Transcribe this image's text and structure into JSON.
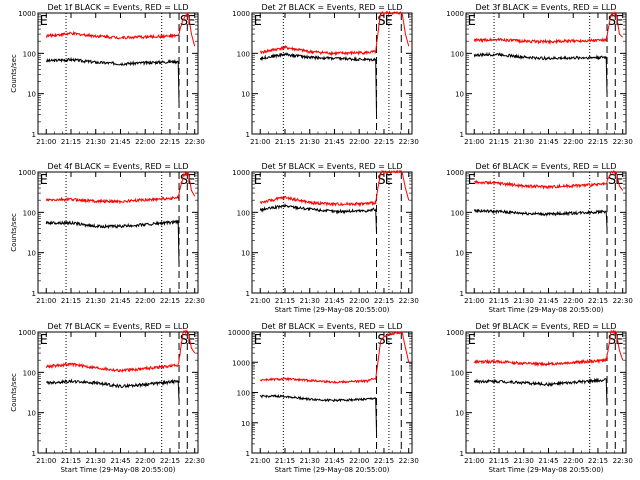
{
  "colors": {
    "events": "#000000",
    "lld": "#ff0000",
    "axis": "#000000",
    "background": "#ffffff"
  },
  "chart_data": [
    {
      "type": "line",
      "title": "Det 1f BLACK = Events, RED = LLD",
      "ylabel": "Counts/sec",
      "xlabel": "",
      "yscale": "log",
      "ylim": [
        1,
        1000
      ],
      "ytick_labels": [
        "1",
        "10",
        "100",
        "1000"
      ],
      "xtick_labels": [
        "21:00",
        "21:15",
        "21:30",
        "21:45",
        "22:00",
        "22:15",
        "22:30"
      ],
      "xlim_min": [
        0,
        97
      ],
      "annotations": [
        "E",
        "S",
        "E"
      ],
      "series": [
        {
          "name": "Events",
          "x": [
            5,
            20,
            35,
            50,
            85,
            85.5
          ],
          "y": [
            65,
            70,
            60,
            55,
            63,
            6
          ]
        },
        {
          "name": "LLD",
          "x": [
            5,
            20,
            35,
            50,
            85,
            88,
            91,
            93,
            95
          ],
          "y": [
            270,
            310,
            270,
            245,
            270,
            700,
            1000,
            300,
            150
          ]
        }
      ],
      "vlines_dotted": [
        17,
        75
      ],
      "vlines_dashed": [
        85.5,
        90.5
      ]
    },
    {
      "type": "line",
      "title": "Det 2f BLACK = Events, RED = LLD",
      "ylabel": "",
      "xlabel": "",
      "yscale": "log",
      "ylim": [
        1,
        1000
      ],
      "ytick_labels": [
        "1",
        "10",
        "100",
        "1000"
      ],
      "xtick_labels": [
        "21:00",
        "21:15",
        "21:30",
        "21:45",
        "22:00",
        "22:15",
        "22:30"
      ],
      "xlim_min": [
        0,
        97
      ],
      "annotations": [
        "E",
        "S",
        "E"
      ],
      "series": [
        {
          "name": "Events",
          "x": [
            5,
            20,
            35,
            50,
            70,
            75,
            75.5
          ],
          "y": [
            75,
            95,
            80,
            75,
            70,
            70,
            3
          ]
        },
        {
          "name": "LLD",
          "x": [
            5,
            20,
            35,
            50,
            70,
            75,
            78,
            81,
            91,
            93,
            95
          ],
          "y": [
            105,
            140,
            110,
            100,
            105,
            110,
            1000,
            1000,
            1000,
            300,
            150
          ]
        }
      ],
      "vlines_dotted": [
        19,
        83
      ],
      "vlines_dashed": [
        75.5,
        90.5
      ]
    },
    {
      "type": "line",
      "title": "Det 3f BLACK = Events, RED = LLD",
      "ylabel": "",
      "xlabel": "",
      "yscale": "log",
      "ylim": [
        1,
        1000
      ],
      "ytick_labels": [
        "1",
        "10",
        "100",
        "1000"
      ],
      "xtick_labels": [
        "21:00",
        "21:15",
        "21:30",
        "21:45",
        "22:00",
        "22:15",
        "22:30"
      ],
      "xlim_min": [
        0,
        97
      ],
      "annotations": [
        "E",
        "S",
        "E"
      ],
      "series": [
        {
          "name": "Events",
          "x": [
            5,
            20,
            35,
            50,
            85,
            85.5
          ],
          "y": [
            90,
            95,
            80,
            75,
            80,
            10
          ]
        },
        {
          "name": "LLD",
          "x": [
            5,
            20,
            35,
            50,
            85,
            88,
            91,
            93,
            95
          ],
          "y": [
            210,
            220,
            200,
            195,
            215,
            900,
            1000,
            300,
            250
          ]
        }
      ],
      "vlines_dotted": [
        17,
        75
      ],
      "vlines_dashed": [
        85.5,
        90.5
      ]
    },
    {
      "type": "line",
      "title": "Det 4f BLACK = Events, RED = LLD",
      "ylabel": "Counts/sec",
      "xlabel": "",
      "yscale": "log",
      "ylim": [
        1,
        1000
      ],
      "ytick_labels": [
        "1",
        "10",
        "100",
        "1000"
      ],
      "xtick_labels": [
        "21:00",
        "21:15",
        "21:30",
        "21:45",
        "22:00",
        "22:15",
        "22:30"
      ],
      "xlim_min": [
        0,
        97
      ],
      "annotations": [
        "E",
        "S",
        "E"
      ],
      "series": [
        {
          "name": "Events",
          "x": [
            5,
            20,
            35,
            50,
            65,
            85,
            85.5
          ],
          "y": [
            55,
            55,
            45,
            45,
            50,
            58,
            5
          ]
        },
        {
          "name": "LLD",
          "x": [
            5,
            20,
            35,
            50,
            65,
            85,
            88,
            91,
            93,
            95
          ],
          "y": [
            200,
            210,
            190,
            185,
            205,
            230,
            800,
            1000,
            350,
            250
          ]
        }
      ],
      "vlines_dotted": [
        17,
        75
      ],
      "vlines_dashed": [
        85.5,
        90.5
      ]
    },
    {
      "type": "line",
      "title": "Det 5f BLACK = Events, RED = LLD",
      "ylabel": "",
      "xlabel": "Start Time (29-May-08 20:55:00)",
      "yscale": "log",
      "ylim": [
        1,
        1000
      ],
      "ytick_labels": [
        "1",
        "10",
        "100",
        "1000"
      ],
      "xtick_labels": [
        "21:00",
        "21:15",
        "21:30",
        "21:45",
        "22:00",
        "22:15",
        "22:30"
      ],
      "xlim_min": [
        0,
        97
      ],
      "annotations": [
        "E",
        "S",
        "E"
      ],
      "series": [
        {
          "name": "Events",
          "x": [
            5,
            20,
            35,
            50,
            70,
            75,
            75.5
          ],
          "y": [
            115,
            145,
            120,
            105,
            110,
            120,
            30
          ]
        },
        {
          "name": "LLD",
          "x": [
            5,
            20,
            35,
            50,
            70,
            75,
            78,
            81,
            91,
            93,
            95
          ],
          "y": [
            175,
            235,
            175,
            160,
            165,
            175,
            1000,
            1000,
            1000,
            400,
            200
          ]
        }
      ],
      "vlines_dotted": [
        19,
        83
      ],
      "vlines_dashed": [
        75.5,
        90.5
      ]
    },
    {
      "type": "line",
      "title": "Det 6f BLACK = Events, RED = LLD",
      "ylabel": "",
      "xlabel": "Start Time (29-May-08 20:55:00)",
      "yscale": "log",
      "ylim": [
        1,
        1000
      ],
      "ytick_labels": [
        "1",
        "10",
        "100",
        "1000"
      ],
      "xtick_labels": [
        "21:00",
        "21:15",
        "21:30",
        "21:45",
        "22:00",
        "22:15",
        "22:30"
      ],
      "xlim_min": [
        0,
        97
      ],
      "annotations": [
        "E",
        "S",
        "E"
      ],
      "series": [
        {
          "name": "Events",
          "x": [
            5,
            20,
            35,
            50,
            85,
            85.5
          ],
          "y": [
            110,
            105,
            95,
            90,
            105,
            40
          ]
        },
        {
          "name": "LLD",
          "x": [
            5,
            20,
            35,
            50,
            85,
            88,
            91,
            93,
            95
          ],
          "y": [
            560,
            530,
            450,
            430,
            500,
            1000,
            1000,
            450,
            350
          ]
        }
      ],
      "vlines_dotted": [
        17,
        75
      ],
      "vlines_dashed": [
        85.5,
        90.5
      ]
    },
    {
      "type": "line",
      "title": "Det 7f BLACK = Events, RED = LLD",
      "ylabel": "Counts/sec",
      "xlabel": "Start Time (29-May-08 20:55:00)",
      "yscale": "log",
      "ylim": [
        1,
        1000
      ],
      "ytick_labels": [
        "1",
        "10",
        "100",
        "1000"
      ],
      "xtick_labels": [
        "21:00",
        "21:15",
        "21:30",
        "21:45",
        "22:00",
        "22:15",
        "22:30"
      ],
      "xlim_min": [
        0,
        97
      ],
      "annotations": [
        "E",
        "S",
        "E"
      ],
      "series": [
        {
          "name": "Events",
          "x": [
            5,
            20,
            35,
            50,
            65,
            85,
            85.5
          ],
          "y": [
            55,
            60,
            55,
            45,
            50,
            60,
            20
          ]
        },
        {
          "name": "LLD",
          "x": [
            5,
            20,
            35,
            50,
            65,
            85,
            88,
            91,
            93,
            95
          ],
          "y": [
            140,
            160,
            130,
            110,
            125,
            150,
            1000,
            1000,
            400,
            300
          ]
        }
      ],
      "vlines_dotted": [
        17,
        75
      ],
      "vlines_dashed": [
        85.5,
        90.5
      ]
    },
    {
      "type": "line",
      "title": "Det 8f BLACK = Events, RED = LLD",
      "ylabel": "",
      "xlabel": "Start Time (29-May-08 20:55:00)",
      "yscale": "log",
      "ylim": [
        1,
        10000
      ],
      "ytick_labels": [
        "1",
        "10",
        "100",
        "1000",
        "10000"
      ],
      "xtick_labels": [
        "21:00",
        "21:15",
        "21:30",
        "21:45",
        "22:00",
        "22:15",
        "22:30"
      ],
      "xlim_min": [
        0,
        97
      ],
      "annotations": [
        "E",
        "S",
        "E"
      ],
      "series": [
        {
          "name": "Events",
          "x": [
            5,
            20,
            35,
            50,
            70,
            75,
            75.5
          ],
          "y": [
            75,
            75,
            60,
            55,
            60,
            65,
            5
          ]
        },
        {
          "name": "LLD",
          "x": [
            5,
            20,
            35,
            50,
            70,
            75,
            78,
            81,
            91,
            93,
            95
          ],
          "y": [
            260,
            280,
            250,
            220,
            240,
            300,
            5000,
            8000,
            10000,
            3000,
            1000
          ]
        }
      ],
      "vlines_dotted": [
        19,
        83
      ],
      "vlines_dashed": [
        75.5,
        90.5
      ]
    },
    {
      "type": "line",
      "title": "Det 9f BLACK = Events, RED = LLD",
      "ylabel": "",
      "xlabel": "Start Time (29-May-08 20:55:00)",
      "yscale": "log",
      "ylim": [
        1,
        1000
      ],
      "ytick_labels": [
        "1",
        "10",
        "100",
        "1000"
      ],
      "xtick_labels": [
        "21:00",
        "21:15",
        "21:30",
        "21:45",
        "22:00",
        "22:15",
        "22:30"
      ],
      "xlim_min": [
        0,
        97
      ],
      "annotations": [
        "E",
        "S",
        "E"
      ],
      "series": [
        {
          "name": "Events",
          "x": [
            5,
            20,
            35,
            50,
            85,
            85.5
          ],
          "y": [
            60,
            60,
            55,
            50,
            65,
            15
          ]
        },
        {
          "name": "LLD",
          "x": [
            5,
            20,
            35,
            50,
            85,
            88,
            91,
            93,
            95
          ],
          "y": [
            180,
            185,
            165,
            160,
            200,
            1000,
            1000,
            350,
            200
          ]
        }
      ],
      "vlines_dotted": [
        17,
        75
      ],
      "vlines_dashed": [
        85.5,
        90.5
      ]
    }
  ]
}
